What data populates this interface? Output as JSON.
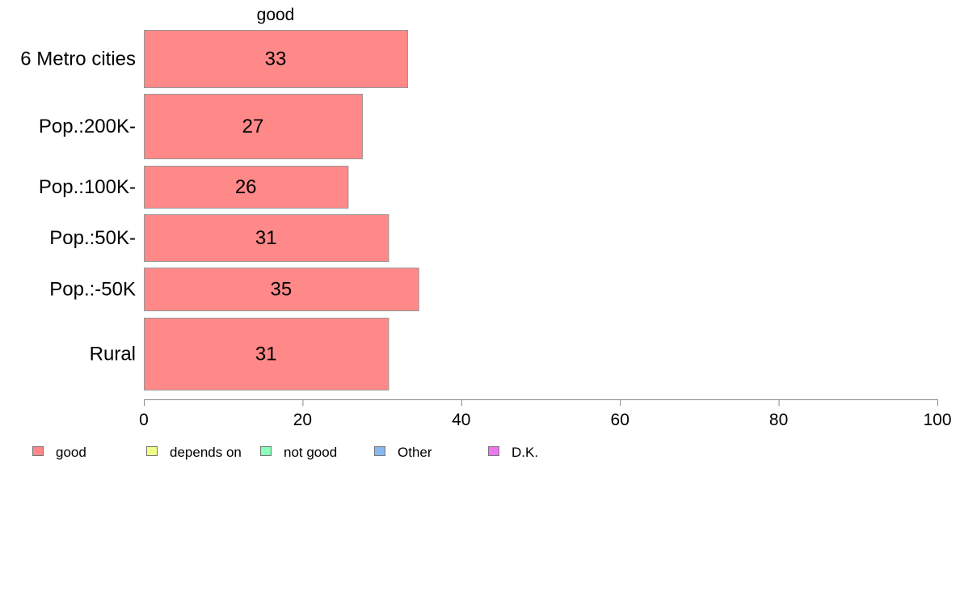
{
  "chart_data": {
    "type": "bar",
    "orientation": "horizontal",
    "title": "good",
    "categories": [
      "6 Metro cities",
      "Pop.:200K-",
      "Pop.:100K-",
      "Pop.:50K-",
      "Pop.:-50K",
      "Rural"
    ],
    "series": [
      {
        "name": "good",
        "values": [
          33.2,
          27.5,
          25.7,
          30.8,
          34.6,
          30.8
        ],
        "labels": [
          "33",
          "27",
          "26",
          "31",
          "35",
          "31"
        ]
      }
    ],
    "xlim": [
      0,
      100
    ],
    "xticks": [
      "0",
      "20",
      "40",
      "60",
      "80",
      "100"
    ],
    "grid": false,
    "legend": {
      "placement": "bottom",
      "items": [
        {
          "label": "good",
          "color": "#ff8888"
        },
        {
          "label": "depends on",
          "color": "#f0ff88"
        },
        {
          "label": "not good",
          "color": "#88ffbb"
        },
        {
          "label": "Other",
          "color": "#88b8f0"
        },
        {
          "label": "D.K.",
          "color": "#ee77ee"
        }
      ]
    },
    "bar_color": "#ff8888"
  }
}
